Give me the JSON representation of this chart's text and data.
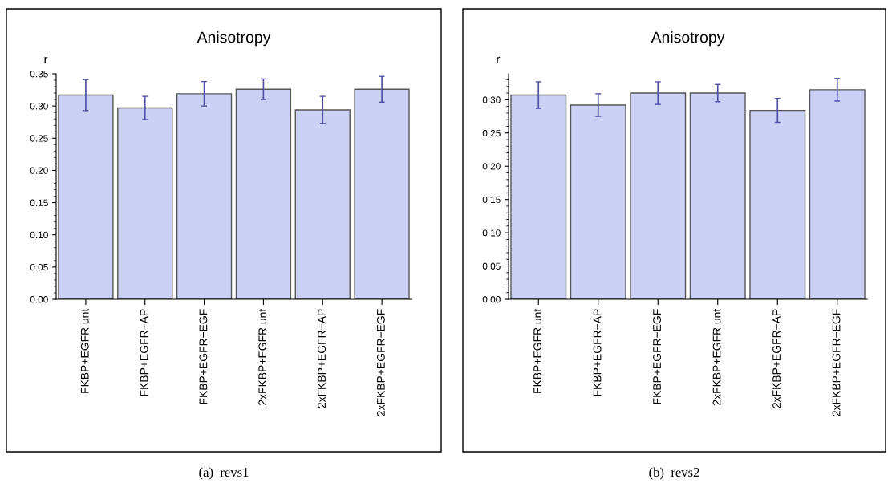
{
  "chart_data": [
    {
      "type": "bar",
      "title": "Anisotropy",
      "ylabel": "r",
      "categories": [
        "FKBP+EGFR unt",
        "FKBP+EGFR+AP",
        "FKBP+EGFR+EGF",
        "2xFKBP+EGFR unt",
        "2xFKBP+EGFR+AP",
        "2xFKBP+EGFR+EGF"
      ],
      "values": [
        0.317,
        0.297,
        0.319,
        0.326,
        0.294,
        0.326
      ],
      "errors": [
        0.024,
        0.018,
        0.019,
        0.016,
        0.021,
        0.02
      ],
      "color": "#cbd1f4",
      "ylim": [
        0,
        0.35
      ],
      "yticks": [
        {
          "value": 0,
          "label": "0.00"
        },
        0.05,
        {
          "value": 0.1,
          "label": "0.10"
        },
        0.15,
        {
          "value": 0.2,
          "label": "0.20"
        },
        0.25,
        {
          "value": 0.3,
          "label": "0.30"
        },
        0.35
      ],
      "grid": false,
      "annotations": [
        "(a)  revs1"
      ]
    },
    {
      "type": "bar",
      "title": "Anisotropy",
      "ylabel": "r",
      "categories": [
        "FKBP+EGFR unt",
        "FKBP+EGFR+AP",
        "FKBP+EGFR+EGF",
        "2xFKBP+EGFR unt",
        "2xFKBP+EGFR+AP",
        "2xFKBP+EGFR+EGF"
      ],
      "values": [
        0.307,
        0.292,
        0.31,
        0.31,
        0.284,
        0.315
      ],
      "errors": [
        0.02,
        0.017,
        0.017,
        0.013,
        0.018,
        0.017
      ],
      "color": "#cbd1f4",
      "ylim": [
        0,
        0.339
      ],
      "yticks": [
        {
          "value": 0,
          "label": "0.00"
        },
        0.05,
        {
          "value": 0.1,
          "label": "0.10"
        },
        0.15,
        {
          "value": 0.2,
          "label": "0.20"
        },
        0.25,
        {
          "value": 0.3,
          "label": "0.30"
        }
      ],
      "grid": false,
      "annotations": [
        "(b)  revs2"
      ]
    }
  ]
}
